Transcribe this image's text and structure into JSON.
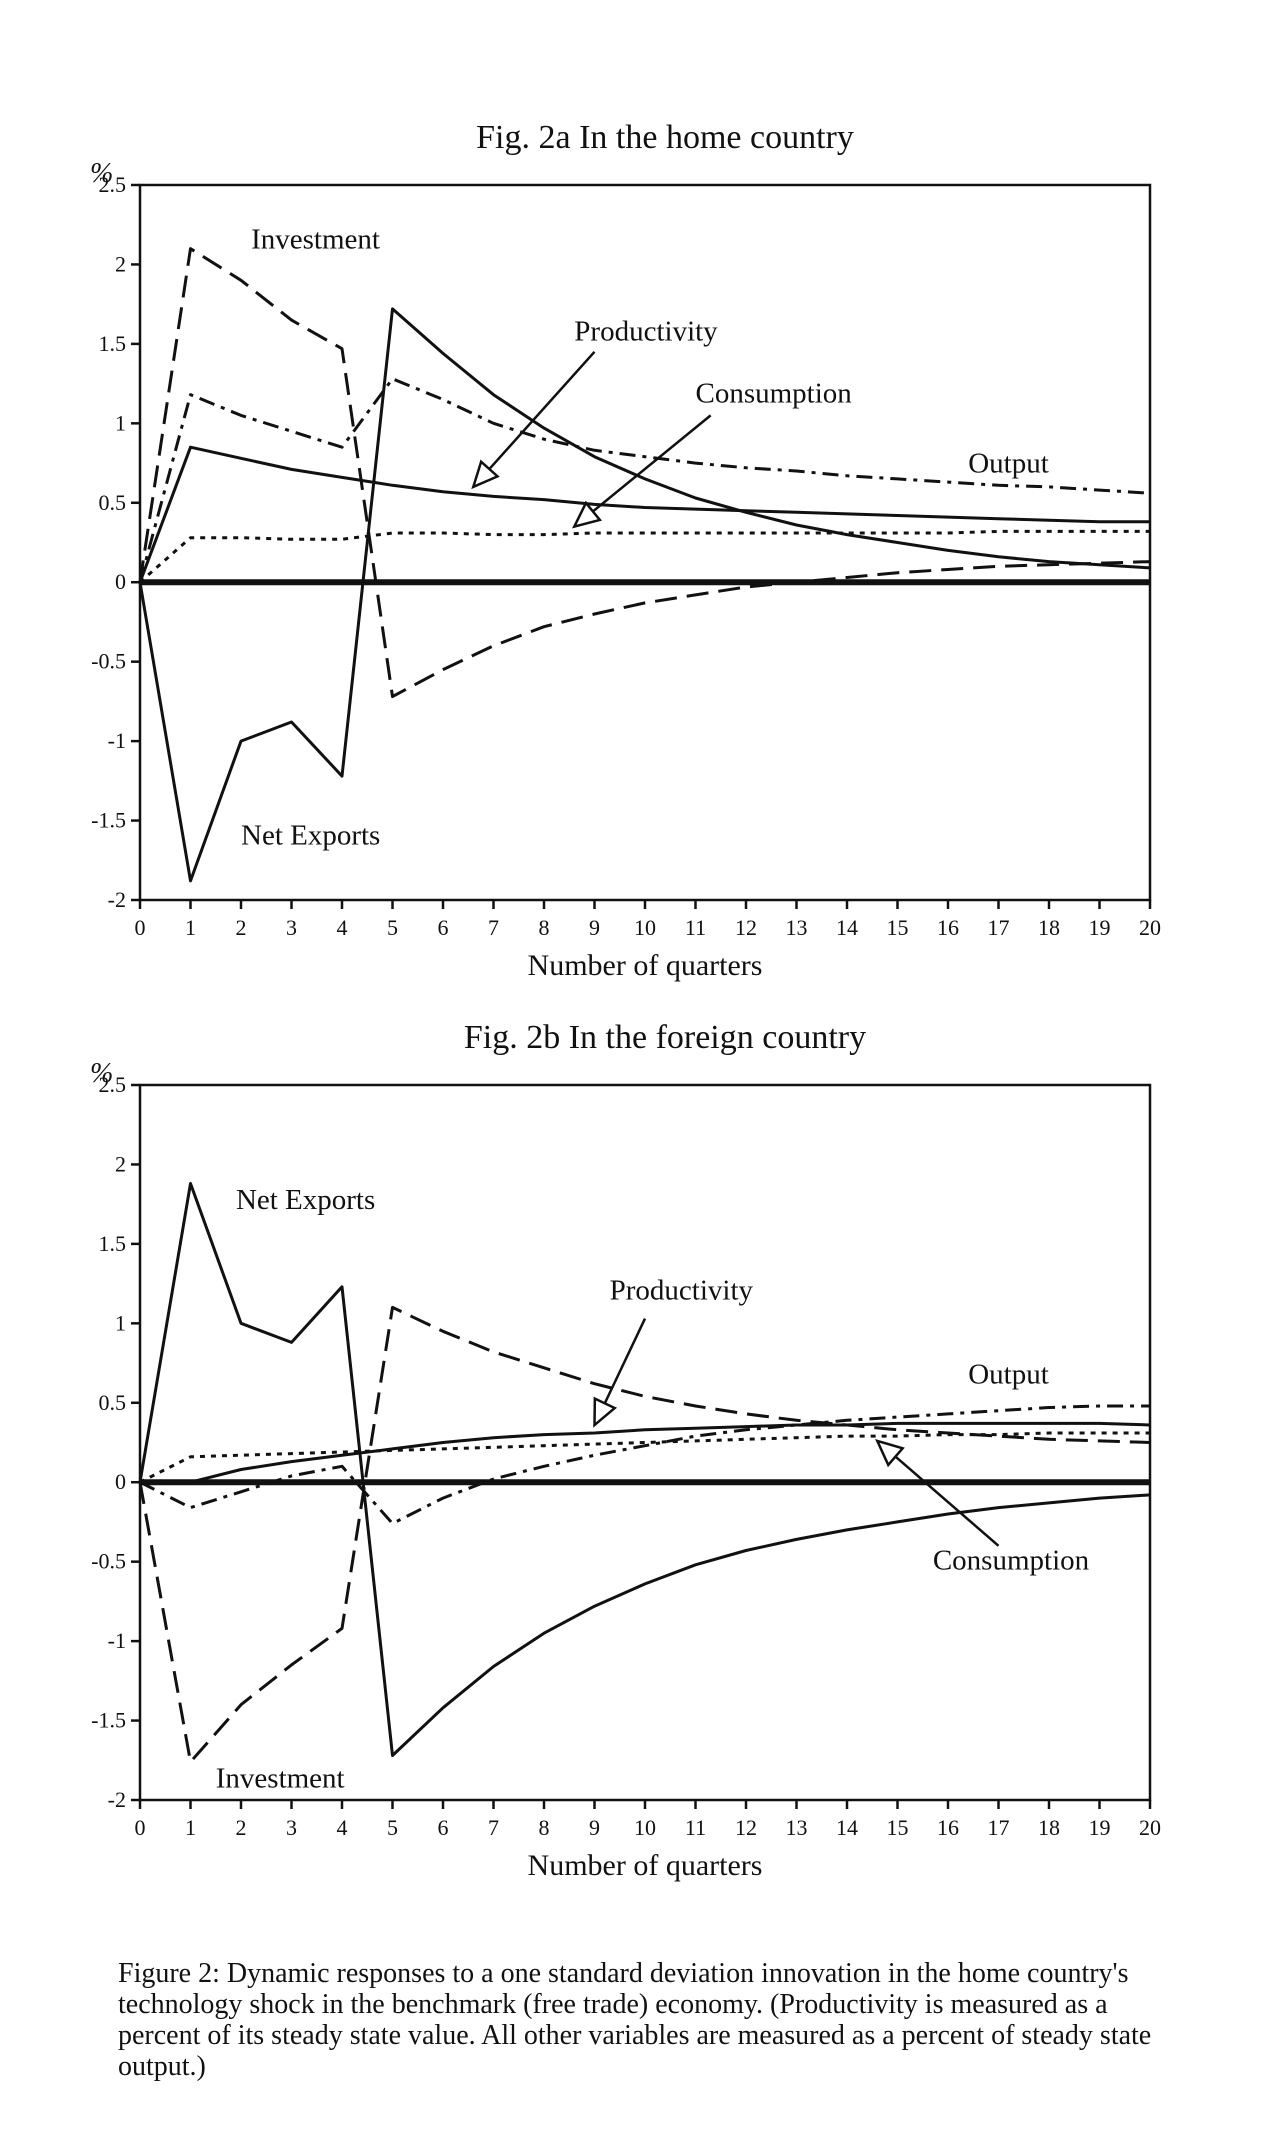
{
  "charts": [
    {
      "type": "line",
      "title": "Fig. 2a  In the home country",
      "ylabel": "%",
      "xlabel": "Number of quarters",
      "xlim": [
        0,
        20
      ],
      "ylim": [
        -2,
        2.5
      ],
      "xticks": [
        0,
        1,
        2,
        3,
        4,
        5,
        6,
        7,
        8,
        9,
        10,
        11,
        12,
        13,
        14,
        15,
        16,
        17,
        18,
        19,
        20
      ],
      "yticks": [
        2.5,
        2,
        1.5,
        1,
        0.5,
        0,
        -0.5,
        -1,
        -1.5,
        -2
      ],
      "grid": false,
      "series": [
        {
          "name": "Output",
          "style": "dashdot",
          "x": [
            0,
            1,
            2,
            3,
            4,
            5,
            6,
            7,
            8,
            9,
            10,
            11,
            12,
            13,
            14,
            15,
            16,
            17,
            18,
            19,
            20
          ],
          "y": [
            0,
            1.18,
            1.05,
            0.95,
            0.85,
            1.28,
            1.15,
            1.0,
            0.9,
            0.83,
            0.79,
            0.75,
            0.72,
            0.7,
            0.67,
            0.65,
            0.63,
            0.61,
            0.6,
            0.58,
            0.56
          ]
        },
        {
          "name": "Productivity",
          "style": "solid",
          "x": [
            0,
            1,
            2,
            3,
            4,
            5,
            6,
            7,
            8,
            9,
            10,
            11,
            12,
            13,
            14,
            15,
            16,
            17,
            18,
            19,
            20
          ],
          "y": [
            0,
            0.85,
            0.78,
            0.71,
            0.66,
            0.61,
            0.57,
            0.54,
            0.52,
            0.49,
            0.47,
            0.46,
            0.45,
            0.44,
            0.43,
            0.42,
            0.41,
            0.4,
            0.39,
            0.38,
            0.38
          ]
        },
        {
          "name": "Consumption",
          "style": "dotted",
          "x": [
            0,
            1,
            2,
            3,
            4,
            5,
            6,
            7,
            8,
            9,
            10,
            11,
            12,
            13,
            14,
            15,
            16,
            17,
            18,
            19,
            20
          ],
          "y": [
            0,
            0.28,
            0.28,
            0.27,
            0.27,
            0.31,
            0.31,
            0.3,
            0.3,
            0.31,
            0.31,
            0.31,
            0.31,
            0.31,
            0.31,
            0.31,
            0.31,
            0.32,
            0.32,
            0.32,
            0.32
          ]
        },
        {
          "name": "Investment",
          "style": "dashed",
          "x": [
            0,
            1,
            2,
            3,
            4,
            5,
            6,
            7,
            8,
            9,
            10,
            11,
            12,
            13,
            14,
            15,
            16,
            17,
            18,
            19,
            20
          ],
          "y": [
            0,
            2.1,
            1.9,
            1.65,
            1.47,
            -0.72,
            -0.55,
            -0.4,
            -0.28,
            -0.2,
            -0.13,
            -0.08,
            -0.03,
            0.0,
            0.03,
            0.06,
            0.08,
            0.1,
            0.11,
            0.12,
            0.13
          ]
        },
        {
          "name": "Net Exports",
          "style": "solid",
          "x": [
            0,
            1,
            2,
            3,
            4,
            5,
            6,
            7,
            8,
            9,
            10,
            11,
            12,
            13,
            14,
            15,
            16,
            17,
            18,
            19,
            20
          ],
          "y": [
            0,
            -1.88,
            -1.0,
            -0.88,
            -1.22,
            1.72,
            1.44,
            1.18,
            0.97,
            0.79,
            0.65,
            0.53,
            0.44,
            0.36,
            0.3,
            0.25,
            0.2,
            0.16,
            0.13,
            0.11,
            0.09
          ]
        }
      ],
      "annotations": [
        {
          "text": "Investment",
          "x": 2.2,
          "y": 2.1
        },
        {
          "text": "Productivity",
          "x": 8.6,
          "y": 1.52
        },
        {
          "text": "Consumption",
          "x": 11.0,
          "y": 1.13
        },
        {
          "text": "Output",
          "x": 16.4,
          "y": 0.69
        },
        {
          "text": "Net Exports",
          "x": 2.0,
          "y": -1.65
        }
      ],
      "arrows": [
        {
          "target": "Productivity",
          "from": [
            9.0,
            1.45
          ],
          "to": [
            6.6,
            0.6
          ]
        },
        {
          "target": "Consumption",
          "from": [
            11.3,
            1.05
          ],
          "to": [
            8.6,
            0.35
          ]
        }
      ]
    },
    {
      "type": "line",
      "title": "Fig. 2b  In the foreign country",
      "ylabel": "%",
      "xlabel": "Number of quarters",
      "xlim": [
        0,
        20
      ],
      "ylim": [
        -2,
        2.5
      ],
      "xticks": [
        0,
        1,
        2,
        3,
        4,
        5,
        6,
        7,
        8,
        9,
        10,
        11,
        12,
        13,
        14,
        15,
        16,
        17,
        18,
        19,
        20
      ],
      "yticks": [
        2.5,
        2,
        1.5,
        1,
        0.5,
        0,
        -0.5,
        -1,
        -1.5,
        -2
      ],
      "grid": false,
      "series": [
        {
          "name": "Output",
          "style": "dashdot",
          "x": [
            0,
            1,
            2,
            3,
            4,
            5,
            6,
            7,
            8,
            9,
            10,
            11,
            12,
            13,
            14,
            15,
            16,
            17,
            18,
            19,
            20
          ],
          "y": [
            0,
            -0.16,
            -0.06,
            0.04,
            0.1,
            -0.26,
            -0.1,
            0.02,
            0.1,
            0.17,
            0.23,
            0.29,
            0.33,
            0.36,
            0.39,
            0.41,
            0.43,
            0.45,
            0.47,
            0.48,
            0.48
          ]
        },
        {
          "name": "Productivity",
          "style": "solid",
          "x": [
            0,
            1,
            2,
            3,
            4,
            5,
            6,
            7,
            8,
            9,
            10,
            11,
            12,
            13,
            14,
            15,
            16,
            17,
            18,
            19,
            20
          ],
          "y": [
            0,
            0.0,
            0.08,
            0.13,
            0.17,
            0.21,
            0.25,
            0.28,
            0.3,
            0.31,
            0.33,
            0.34,
            0.35,
            0.36,
            0.36,
            0.37,
            0.37,
            0.37,
            0.37,
            0.37,
            0.36
          ]
        },
        {
          "name": "Consumption",
          "style": "dotted",
          "x": [
            0,
            1,
            2,
            3,
            4,
            5,
            6,
            7,
            8,
            9,
            10,
            11,
            12,
            13,
            14,
            15,
            16,
            17,
            18,
            19,
            20
          ],
          "y": [
            0,
            0.16,
            0.17,
            0.18,
            0.19,
            0.2,
            0.21,
            0.22,
            0.23,
            0.24,
            0.25,
            0.26,
            0.27,
            0.28,
            0.29,
            0.29,
            0.3,
            0.3,
            0.31,
            0.31,
            0.31
          ]
        },
        {
          "name": "Investment",
          "style": "dashed",
          "x": [
            0,
            1,
            2,
            3,
            4,
            5,
            6,
            7,
            8,
            9,
            10,
            11,
            12,
            13,
            14,
            15,
            16,
            17,
            18,
            19,
            20
          ],
          "y": [
            0,
            -1.76,
            -1.4,
            -1.15,
            -0.92,
            1.1,
            0.95,
            0.82,
            0.72,
            0.62,
            0.54,
            0.48,
            0.43,
            0.39,
            0.36,
            0.33,
            0.31,
            0.29,
            0.27,
            0.26,
            0.25
          ]
        },
        {
          "name": "Net Exports",
          "style": "solid",
          "x": [
            0,
            1,
            2,
            3,
            4,
            5,
            6,
            7,
            8,
            9,
            10,
            11,
            12,
            13,
            14,
            15,
            16,
            17,
            18,
            19,
            20
          ],
          "y": [
            0,
            1.88,
            1.0,
            0.88,
            1.23,
            -1.72,
            -1.42,
            -1.16,
            -0.95,
            -0.78,
            -0.64,
            -0.52,
            -0.43,
            -0.36,
            -0.3,
            -0.25,
            -0.2,
            -0.16,
            -0.13,
            -0.1,
            -0.08
          ]
        }
      ],
      "annotations": [
        {
          "text": "Net Exports",
          "x": 1.9,
          "y": 1.72
        },
        {
          "text": "Productivity",
          "x": 9.3,
          "y": 1.15
        },
        {
          "text": "Output",
          "x": 16.4,
          "y": 0.62
        },
        {
          "text": "Consumption",
          "x": 15.7,
          "y": -0.55
        },
        {
          "text": "Investment",
          "x": 1.5,
          "y": -1.92
        }
      ],
      "arrows": [
        {
          "target": "Productivity",
          "from": [
            10.0,
            1.03
          ],
          "to": [
            9.0,
            0.36
          ]
        },
        {
          "target": "Consumption",
          "from": [
            17.0,
            -0.4
          ],
          "to": [
            14.6,
            0.26
          ]
        }
      ]
    }
  ],
  "caption": "Figure 2:  Dynamic responses to a one standard deviation innovation in the home country's technology shock in the benchmark (free trade) economy.  (Productivity is measured as a percent of its steady state value.  All other variables are measured as a percent of steady state output.)"
}
